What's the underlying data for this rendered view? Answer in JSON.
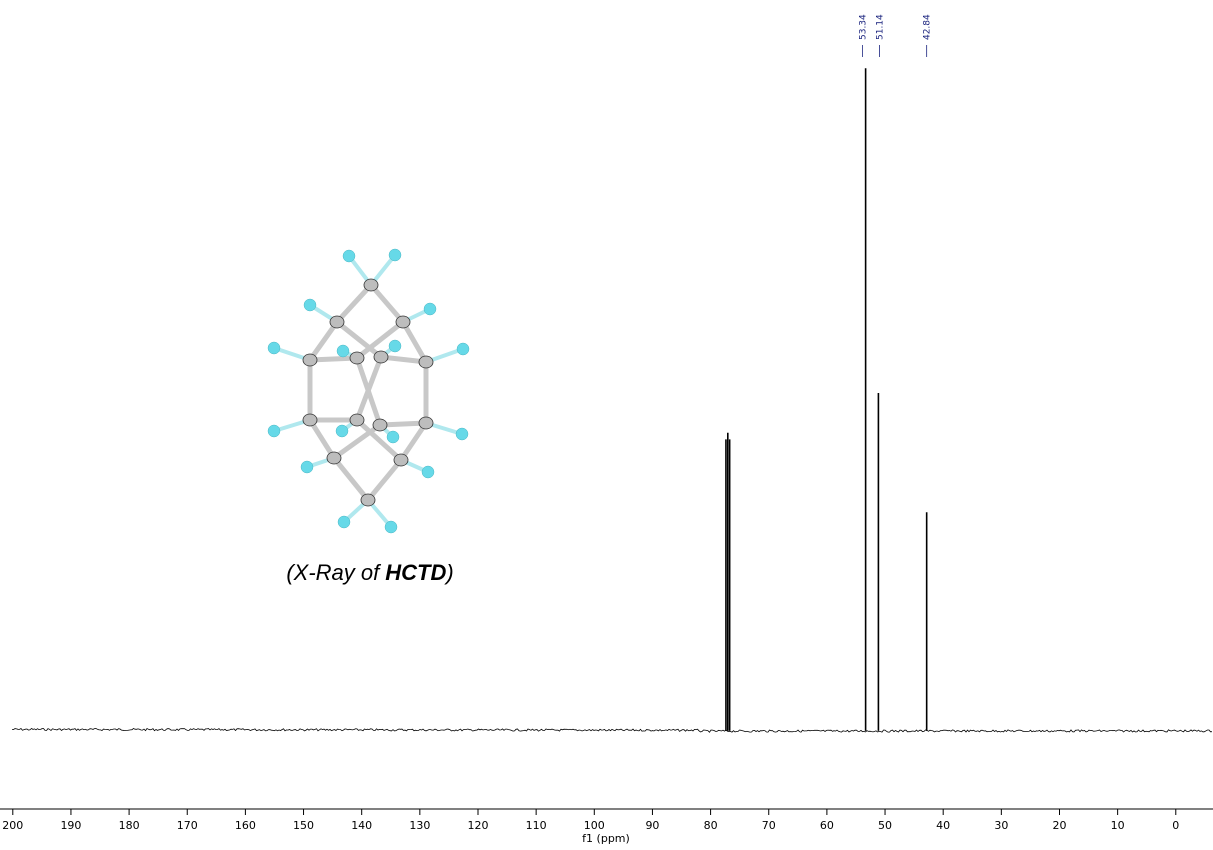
{
  "chart_data": {
    "type": "nmr",
    "x_label": "f1 (ppm)",
    "x": [
      77.36,
      77.04,
      76.72,
      53.34,
      51.14,
      42.84
    ],
    "values": [
      44,
      45,
      44,
      100,
      51,
      33
    ],
    "peak_labels": [
      53.34,
      51.14,
      42.84
    ],
    "xlim": [
      202.2,
      -6.4
    ],
    "ylim": [
      -5.9,
      110.3
    ],
    "xticks": [
      200,
      190,
      180,
      170,
      160,
      150,
      140,
      130,
      120,
      110,
      100,
      90,
      80,
      70,
      60,
      50,
      40,
      30,
      20,
      10,
      0
    ],
    "color": "#000000",
    "label_color": "#1a237e",
    "caption": {
      "open": "(X-Ray of",
      "emphasis": "HCTD",
      "close": ")"
    }
  }
}
